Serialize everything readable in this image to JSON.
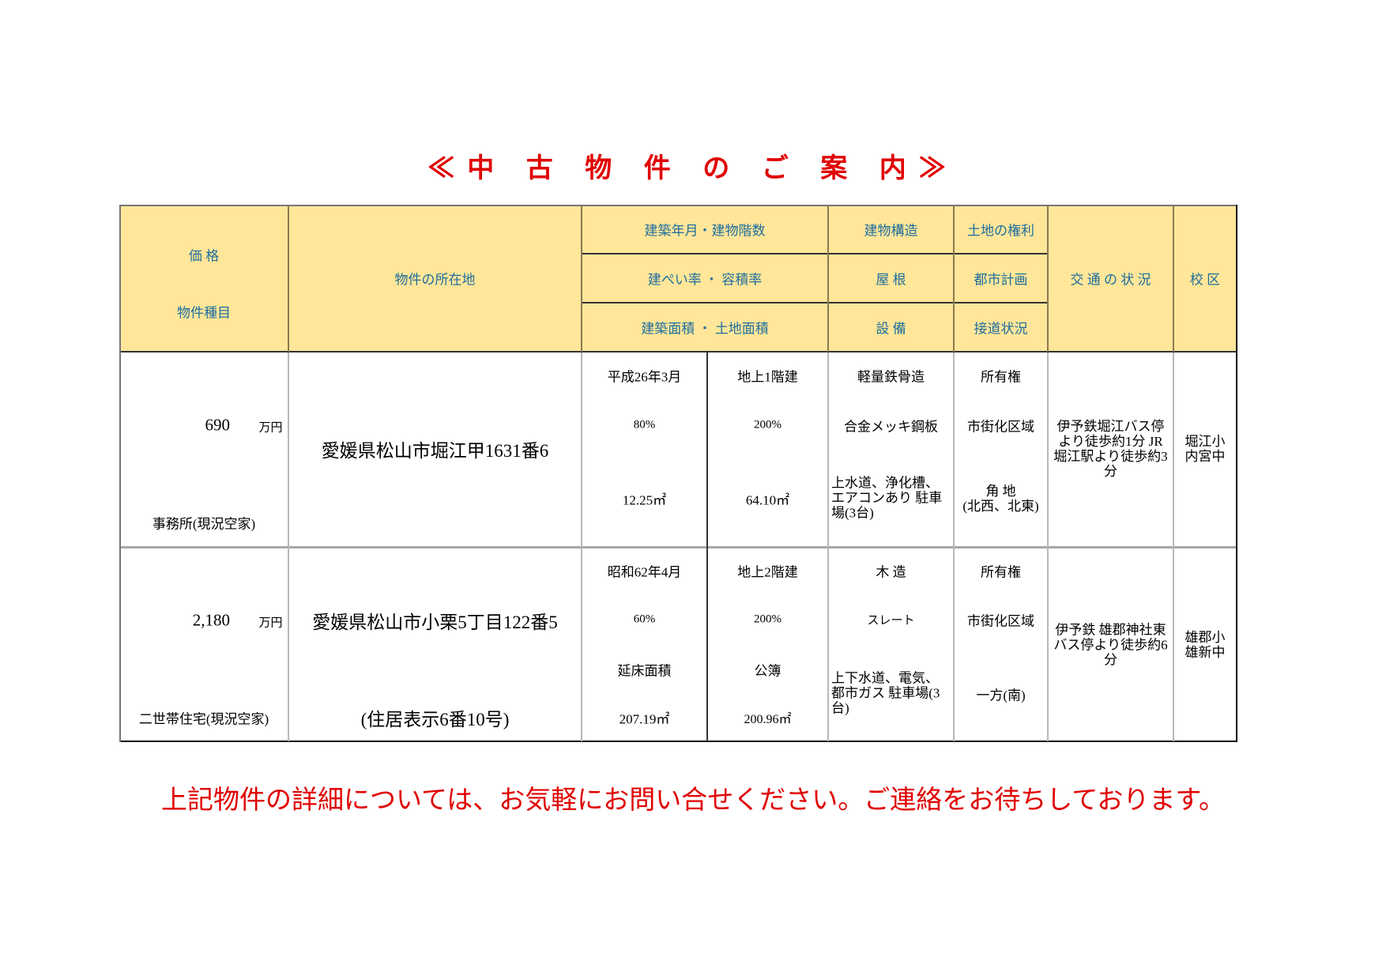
{
  "title": "≪中 古 物 件 の ご 案 内≫",
  "header": {
    "price": "価 格",
    "type": "物件種目",
    "address": "物件の所在地",
    "built_floors": "建築年月・建物階数",
    "coverage_far": "建ぺい率 ・ 容積率",
    "areas": "建築面積 ・ 土地面積",
    "structure": "建物構造",
    "roof": "屋 根",
    "facilities": "設 備",
    "land_rights": "土地の権利",
    "city_planning": "都市計画",
    "road_access": "接道状況",
    "transport": "交 通 の 状 況",
    "school": "校 区"
  },
  "rows": [
    {
      "price": "690",
      "price_unit": "万円",
      "type": "事務所(現況空家)",
      "address": "愛媛県松山市堀江甲1631番6",
      "address_note": "",
      "built": "平成26年3月",
      "floors": "地上1階建",
      "coverage": "80%",
      "far": "200%",
      "building_area_label": "",
      "land_area_label": "",
      "building_area": "12.25㎡",
      "land_area": "64.10㎡",
      "structure": "軽量鉄骨造",
      "roof": "合金メッキ鋼板",
      "facilities": "上水道、浄化槽、エアコンあり 駐車場(3台)",
      "land_rights": "所有権",
      "city_planning": "市街化区域",
      "road_access": "角 地\n(北西、北東)",
      "transport": "伊予鉄堀江バス停より徒歩約1分\nJR堀江駅より徒歩約3分",
      "school": "堀江小\n内宮中"
    },
    {
      "price": "2,180",
      "price_unit": "万円",
      "type": "二世帯住宅(現況空家)",
      "address": "愛媛県松山市小栗5丁目122番5",
      "address_note": "(住居表示6番10号)",
      "built": "昭和62年4月",
      "floors": "地上2階建",
      "coverage": "60%",
      "far": "200%",
      "building_area_label": "延床面積",
      "land_area_label": "公簿",
      "building_area": "207.19㎡",
      "land_area": "200.96㎡",
      "structure": "木 造",
      "roof": "スレート",
      "facilities": "上下水道、電気、都市ガス 駐車場(3台)",
      "land_rights": "所有権",
      "city_planning": "市街化区域",
      "road_access": "一方(南)",
      "transport": "伊予鉄 雄郡神社東バス停より徒歩約6分",
      "school": "雄郡小\n雄新中"
    }
  ],
  "footer": "上記物件の詳細については、お気軽にお問い合せください。ご連絡をお待ちしております。",
  "colors": {
    "header_bg": "#ffe699",
    "header_text": "#1f6e9e",
    "accent_red": "#e00000"
  }
}
